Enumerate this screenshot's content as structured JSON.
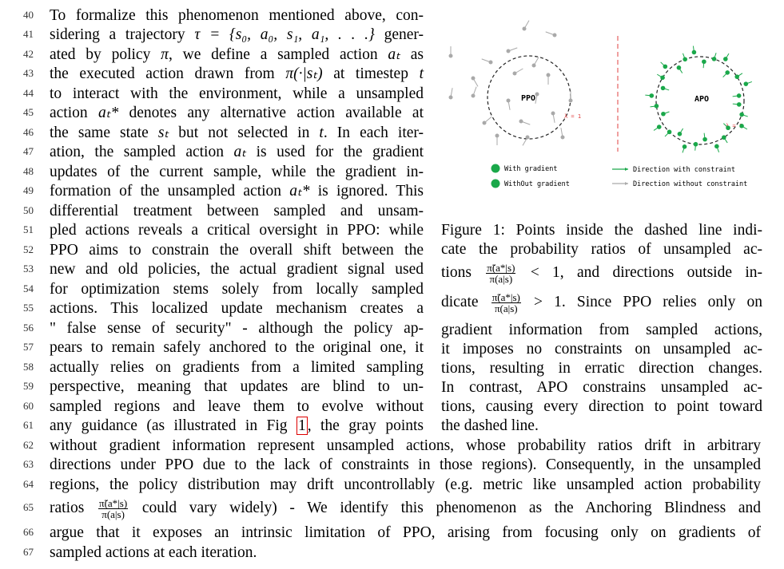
{
  "line_numbers": [
    "40",
    "41",
    "42",
    "43",
    "44",
    "45",
    "46",
    "47",
    "48",
    "49",
    "50",
    "51",
    "52",
    "53",
    "54",
    "55",
    "56",
    "57",
    "58",
    "59",
    "60",
    "61",
    "62",
    "63",
    "64",
    "65",
    "66",
    "67"
  ],
  "body": {
    "l40": "To formalize this phenomenon mentioned above, con-",
    "l41a": "sidering a trajectory ",
    "l41m": "τ = {s₀, a₀, s₁, a₁, . . .}",
    "l41b": " gener-",
    "l42a": "ated by policy ",
    "l42m": "π",
    "l42b": ", we define a sampled action ",
    "l42m2": "aₜ",
    "l42c": " as",
    "l43a": "the executed action drawn from ",
    "l43m": "π(·|sₜ)",
    "l43b": " at timestep ",
    "l43m2": "t",
    "l44": "to interact with the environment, while a unsampled",
    "l45a": "action ",
    "l45m": "aₜ*",
    "l45b": " denotes any alternative action available at",
    "l46a": "the same state ",
    "l46m": "sₜ",
    "l46b": " but not selected in ",
    "l46m2": "t",
    "l46c": ". In each iter-",
    "l47a": "ation, the sampled action ",
    "l47m": "aₜ",
    "l47b": " is used for the gradient",
    "l48": "updates of the current sample, while the gradient in-",
    "l49a": "formation of the unsampled action ",
    "l49m": "aₜ*",
    "l49b": " is ignored. This",
    "l50": "differential treatment between sampled and unsam-",
    "l51": "pled actions reveals a critical oversight in PPO: while",
    "l52": "PPO aims to constrain the overall shift between the",
    "l53": "new and old policies, the actual gradient signal used",
    "l54": "for optimization stems solely from locally sampled",
    "l55": "actions. This localized update mechanism creates a",
    "l56": "\" false sense of security\" - although the policy ap-",
    "l57": "pears to remain safely anchored to the original one, it",
    "l58": "actually relies on gradients from a limited sampling",
    "l59": "perspective, meaning that updates are blind to un-",
    "l60": "sampled regions and leave them to evolve without",
    "l61a": "any guidance (as illustrated in Fig ",
    "l61ref": "1",
    "l61b": ", the gray points",
    "l62": "without gradient information represent unsampled actions, whose probability ratios drift in arbitrary",
    "l63": "directions under PPO due to the lack of constraints in those regions). Consequently, in the unsampled",
    "l64": "regions, the policy distribution may drift uncontrollably (e.g. metric like unsampled action probability",
    "l65a": "ratios ",
    "l65b": " could vary widely) - We identify this phenomenon as the Anchoring Blindness and",
    "l66": "argue that it exposes an intrinsic limitation of PPO, arising from focusing only on gradients of",
    "l67": "sampled actions at each iteration."
  },
  "fraction": {
    "num": "π̃(a*|s)",
    "den": "π(a|s)"
  },
  "caption": {
    "c1": "Figure 1: Points inside the dashed line indi-",
    "c2": "cate the probability ratios of unsampled ac-",
    "c3a": "tions ",
    "c3b": " < 1, and directions outside in-",
    "c4a": "dicate ",
    "c4b": " > 1. Since PPO relies only on",
    "c5": "gradient information from sampled actions,",
    "c6": "it imposes no constraints on unsampled ac-",
    "c7": "tions, resulting in erratic direction changes.",
    "c8": "In contrast, APO constrains unsampled ac-",
    "c9": "tions, causing every direction to point toward",
    "c10": "the dashed line."
  },
  "figure": {
    "left_label": "PPO",
    "right_label": "APO",
    "radius_label": "λ = 1",
    "legend_with": "With gradient",
    "legend_without": "WithOut gradient",
    "legend_dir_with": "Direction with constraint",
    "legend_dir_without": "Direction without constraint",
    "colors": {
      "green": "#1aa84a",
      "gray": "#a9a9a9",
      "red": "#e04040"
    }
  }
}
